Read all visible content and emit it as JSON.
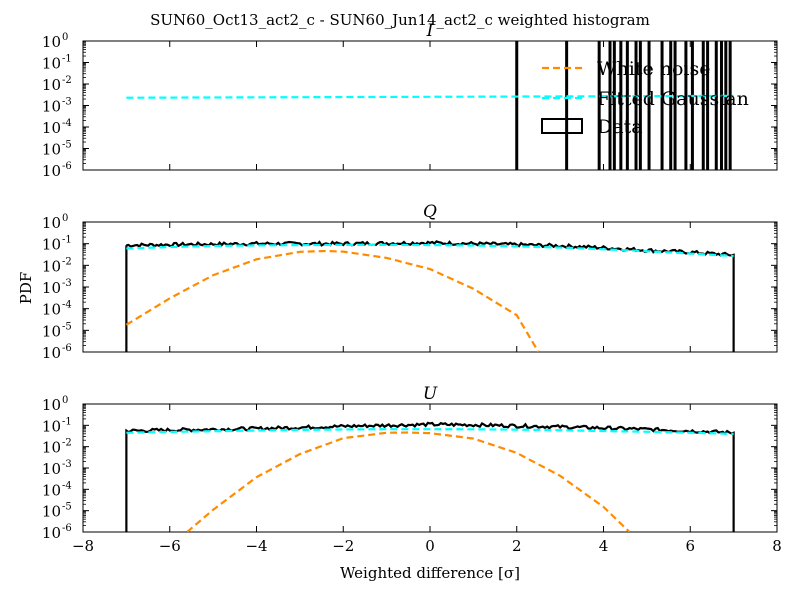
{
  "figure": {
    "suptitle": "SUN60_Oct13_act2_c - SUN60_Jun14_act2_c weighted histogram",
    "xlabel": "Weighted difference [σ]",
    "ylabel": "PDF"
  },
  "colors": {
    "data": "#000000",
    "white_noise": "#ff8c00",
    "fitted_gaussian": "#00ffff"
  },
  "legend": {
    "location": "top-right of panel I",
    "entries": [
      {
        "label": "White noise",
        "style": "dashed",
        "color": "#ff8c00"
      },
      {
        "label": "Fitted Gaussian",
        "style": "dashed",
        "color": "#00ffff"
      },
      {
        "label": "Data",
        "style": "box",
        "color": "#000000"
      }
    ]
  },
  "chart_data": [
    {
      "type": "line",
      "panel_title": "I",
      "xlim": [
        -8,
        8
      ],
      "ylim": [
        1e-06,
        1
      ],
      "yscale": "log",
      "xticks": [
        "−8",
        "−6",
        "−4",
        "−2",
        "0",
        "2",
        "4",
        "6",
        "8"
      ],
      "yticks": [
        {
          "base": "10",
          "exp": "0"
        },
        {
          "base": "10",
          "exp": "-1"
        },
        {
          "base": "10",
          "exp": "-2"
        },
        {
          "base": "10",
          "exp": "-3"
        },
        {
          "base": "10",
          "exp": "-4"
        },
        {
          "base": "10",
          "exp": "-5"
        },
        {
          "base": "10",
          "exp": "-6"
        }
      ],
      "series": [
        {
          "name": "Fitted Gaussian",
          "style": "dashed",
          "x": [
            -7,
            7
          ],
          "y": [
            0.0023,
            0.0028
          ]
        },
        {
          "name": "Data",
          "style": "spikes",
          "x": [
            2.0,
            3.15,
            3.9,
            4.15,
            4.25,
            4.4,
            4.55,
            4.75,
            4.85,
            5.05,
            5.35,
            5.55,
            5.65,
            5.9,
            6.05,
            6.3,
            6.4,
            6.6,
            6.72,
            6.82,
            6.92
          ]
        }
      ]
    },
    {
      "type": "line",
      "panel_title": "Q",
      "xlim": [
        -8,
        8
      ],
      "ylim": [
        1e-06,
        1
      ],
      "yscale": "log",
      "xticks": [
        "−8",
        "−6",
        "−4",
        "−2",
        "0",
        "2",
        "4",
        "6",
        "8"
      ],
      "yticks": [
        {
          "base": "10",
          "exp": "0"
        },
        {
          "base": "10",
          "exp": "-1"
        },
        {
          "base": "10",
          "exp": "-2"
        },
        {
          "base": "10",
          "exp": "-3"
        },
        {
          "base": "10",
          "exp": "-4"
        },
        {
          "base": "10",
          "exp": "-5"
        },
        {
          "base": "10",
          "exp": "-6"
        }
      ],
      "series": [
        {
          "name": "Data",
          "style": "step",
          "x": [
            -7,
            -6,
            -5,
            -4,
            -3,
            -2,
            -1,
            0,
            1,
            2,
            3,
            4,
            5,
            6,
            7
          ],
          "y": [
            0.085,
            0.09,
            0.095,
            0.1,
            0.1,
            0.1,
            0.105,
            0.11,
            0.1,
            0.09,
            0.08,
            0.065,
            0.05,
            0.04,
            0.03
          ]
        },
        {
          "name": "Fitted Gaussian",
          "style": "dashed",
          "x": [
            -7,
            -6,
            -5,
            -4,
            -3,
            -2,
            -1,
            0,
            1,
            2,
            3,
            4,
            5,
            6,
            7
          ],
          "y": [
            0.06,
            0.07,
            0.078,
            0.083,
            0.086,
            0.088,
            0.088,
            0.086,
            0.082,
            0.075,
            0.066,
            0.055,
            0.045,
            0.035,
            0.027
          ]
        },
        {
          "name": "White noise",
          "style": "dashed",
          "x": [
            -7,
            -6,
            -5,
            -4,
            -3,
            -2.4,
            -2,
            -1,
            0,
            1,
            2,
            2.5
          ],
          "y": [
            1.8e-05,
            0.0003,
            0.0035,
            0.019,
            0.042,
            0.046,
            0.043,
            0.022,
            0.0067,
            0.00083,
            5e-05,
            1e-06
          ]
        }
      ]
    },
    {
      "type": "line",
      "panel_title": "U",
      "xlim": [
        -8,
        8
      ],
      "ylim": [
        1e-06,
        1
      ],
      "yscale": "log",
      "xticks": [
        "−8",
        "−6",
        "−4",
        "−2",
        "0",
        "2",
        "4",
        "6",
        "8"
      ],
      "yticks": [
        {
          "base": "10",
          "exp": "0"
        },
        {
          "base": "10",
          "exp": "-1"
        },
        {
          "base": "10",
          "exp": "-2"
        },
        {
          "base": "10",
          "exp": "-3"
        },
        {
          "base": "10",
          "exp": "-4"
        },
        {
          "base": "10",
          "exp": "-5"
        },
        {
          "base": "10",
          "exp": "-6"
        }
      ],
      "series": [
        {
          "name": "Data",
          "style": "step",
          "x": [
            -7,
            -6,
            -5,
            -4,
            -3,
            -2,
            -1,
            0,
            1,
            2,
            3,
            4,
            5,
            6,
            7
          ],
          "y": [
            0.055,
            0.06,
            0.065,
            0.07,
            0.08,
            0.09,
            0.1,
            0.11,
            0.105,
            0.095,
            0.085,
            0.075,
            0.065,
            0.055,
            0.045
          ]
        },
        {
          "name": "Fitted Gaussian",
          "style": "dashed",
          "x": [
            -7,
            -6,
            -5,
            -4,
            -3,
            -2,
            -1,
            0,
            1,
            2,
            3,
            4,
            5,
            6,
            7
          ],
          "y": [
            0.045,
            0.049,
            0.053,
            0.057,
            0.061,
            0.064,
            0.066,
            0.066,
            0.065,
            0.063,
            0.059,
            0.054,
            0.05,
            0.045,
            0.04
          ]
        },
        {
          "name": "White noise",
          "style": "dashed",
          "x": [
            -5.6,
            -5,
            -4,
            -3,
            -2,
            -1,
            -0.5,
            0,
            1,
            2,
            3,
            4,
            4.6
          ],
          "y": [
            1e-06,
            1.1e-05,
            0.00037,
            0.0045,
            0.025,
            0.045,
            0.046,
            0.043,
            0.024,
            0.0051,
            0.00043,
            1.5e-05,
            1e-06
          ]
        }
      ]
    }
  ]
}
